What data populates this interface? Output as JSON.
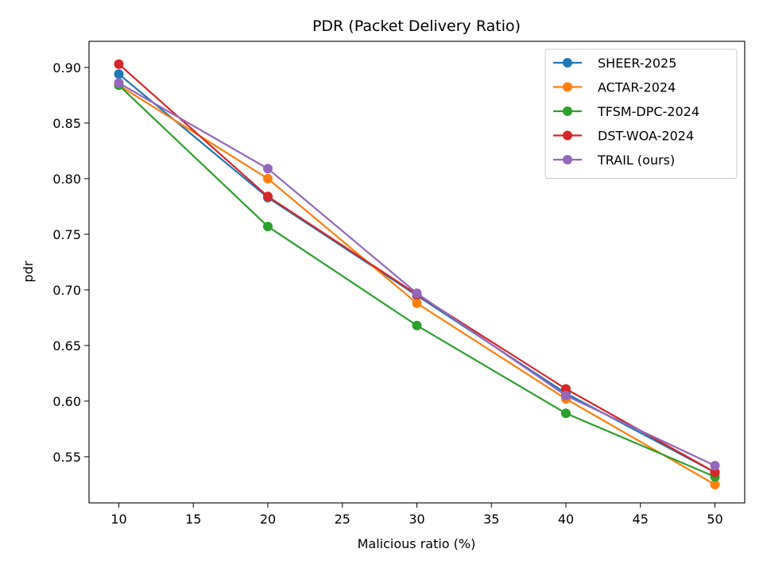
{
  "chart_data": {
    "type": "line",
    "title": "PDR (Packet Delivery Ratio)",
    "xlabel": "Malicious ratio (%)",
    "ylabel": "pdr",
    "x": [
      10,
      20,
      30,
      40,
      50
    ],
    "xlim": [
      8,
      52
    ],
    "ylim": [
      0.5085,
      0.9235
    ],
    "xticks": [
      10,
      15,
      20,
      25,
      30,
      35,
      40,
      45,
      50
    ],
    "yticks": [
      0.55,
      0.6,
      0.65,
      0.7,
      0.75,
      0.8,
      0.85,
      0.9
    ],
    "grid": false,
    "legend_position": "upper right",
    "series": [
      {
        "name": "SHEER-2025",
        "color": "#1f77b4",
        "values": [
          0.894,
          0.783,
          0.695,
          0.607,
          0.536
        ]
      },
      {
        "name": "ACTAR-2024",
        "color": "#ff7f0e",
        "values": [
          0.884,
          0.8,
          0.688,
          0.602,
          0.525
        ]
      },
      {
        "name": "TFSM-DPC-2024",
        "color": "#2ca02c",
        "values": [
          0.884,
          0.757,
          0.668,
          0.589,
          0.532
        ]
      },
      {
        "name": "DST-WOA-2024",
        "color": "#d62728",
        "values": [
          0.903,
          0.784,
          0.696,
          0.611,
          0.536
        ]
      },
      {
        "name": "TRAIL (ours)",
        "color": "#9467bd",
        "values": [
          0.886,
          0.809,
          0.697,
          0.605,
          0.542
        ]
      }
    ]
  }
}
